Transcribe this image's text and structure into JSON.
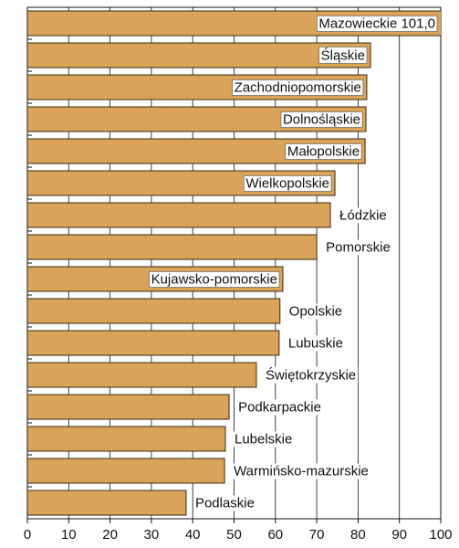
{
  "chart_data": {
    "type": "bar",
    "orientation": "horizontal",
    "categories": [
      "Mazowieckie 101,0",
      "Śląskie",
      "Zachodniopomorskie",
      "Dolnośląskie",
      "Małopolskie",
      "Wielkopolskie",
      "Łódzkie",
      "Pomorskie",
      "Kujawsko-pomorskie",
      "Opolskie",
      "Lubuskie",
      "Świętokrzyskie",
      "Podkarpackie",
      "Lubelskie",
      "Warmińsko-mazurskie",
      "Podlaskie"
    ],
    "values": [
      101.0,
      83.0,
      82.1,
      81.9,
      81.7,
      74.4,
      73.3,
      70.0,
      61.8,
      61.1,
      60.9,
      55.4,
      48.8,
      47.9,
      47.7,
      38.4
    ],
    "color": "#d9a45a",
    "xlim": [
      0,
      100
    ],
    "xticks": [
      0,
      10,
      20,
      30,
      40,
      50,
      60,
      70,
      80,
      90,
      100
    ],
    "grid": true
  }
}
